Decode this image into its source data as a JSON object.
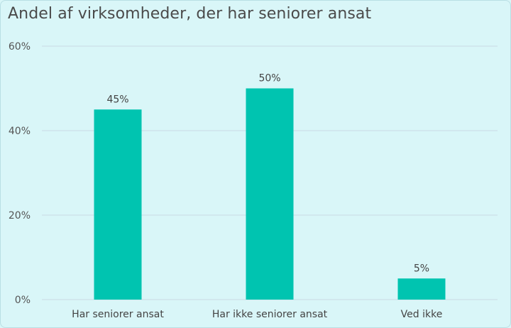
{
  "chart_data": {
    "type": "bar",
    "title": "Andel af virksomheder, der har seniorer ansat",
    "categories": [
      "Har seniorer ansat",
      "Har ikke seniorer ansat",
      "Ved ikke"
    ],
    "values": [
      45,
      50,
      5
    ],
    "data_labels": [
      "45%",
      "50%",
      "5%"
    ],
    "ylim": [
      0,
      60
    ],
    "yticks": [
      0,
      20,
      40,
      60
    ],
    "ytick_labels": [
      "0%",
      "20%",
      "40%",
      "60%"
    ],
    "grid": true,
    "bar_color": "#00c4b0",
    "grid_color": "#c9dbe3"
  }
}
